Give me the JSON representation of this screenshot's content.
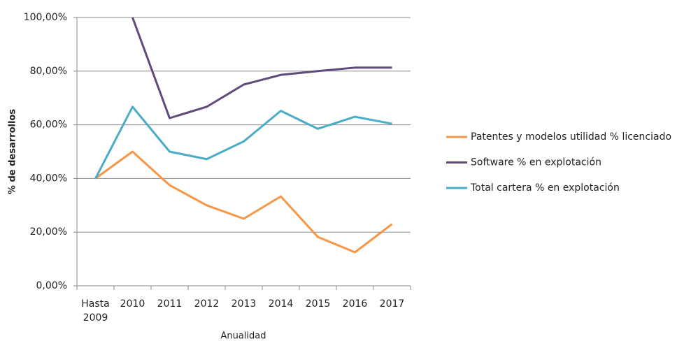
{
  "chart_data": {
    "type": "line",
    "x_label": "Anualidad",
    "y_label": "% de desarrollos",
    "categories": [
      "Hasta 2009",
      "2010",
      "2011",
      "2012",
      "2013",
      "2014",
      "2015",
      "2016",
      "2017"
    ],
    "series": [
      {
        "name": "Patentes y modelos utilidad % licenciado",
        "color": "#f79646",
        "values": [
          40,
          50,
          37.5,
          30,
          25,
          33.3,
          18.2,
          12.5,
          23
        ]
      },
      {
        "name": "Software % en explotación",
        "color": "#604a7b",
        "values": [
          null,
          100,
          62.5,
          66.7,
          75,
          78.6,
          80,
          81.3,
          81.3
        ]
      },
      {
        "name": "Total cartera % en explotación",
        "color": "#4bacc6",
        "values": [
          40,
          66.7,
          50,
          47.2,
          53.8,
          65.2,
          58.5,
          63,
          60.4
        ]
      }
    ],
    "ylim": [
      0,
      100
    ],
    "yticks": [
      {
        "value": 0,
        "label": "0,00%"
      },
      {
        "value": 20,
        "label": "20,00%"
      },
      {
        "value": 40,
        "label": "40,00%"
      },
      {
        "value": 60,
        "label": "60,00%"
      },
      {
        "value": 80,
        "label": "80,00%"
      },
      {
        "value": 100,
        "label": "100,00%"
      }
    ],
    "grid": true,
    "legend": "right"
  }
}
